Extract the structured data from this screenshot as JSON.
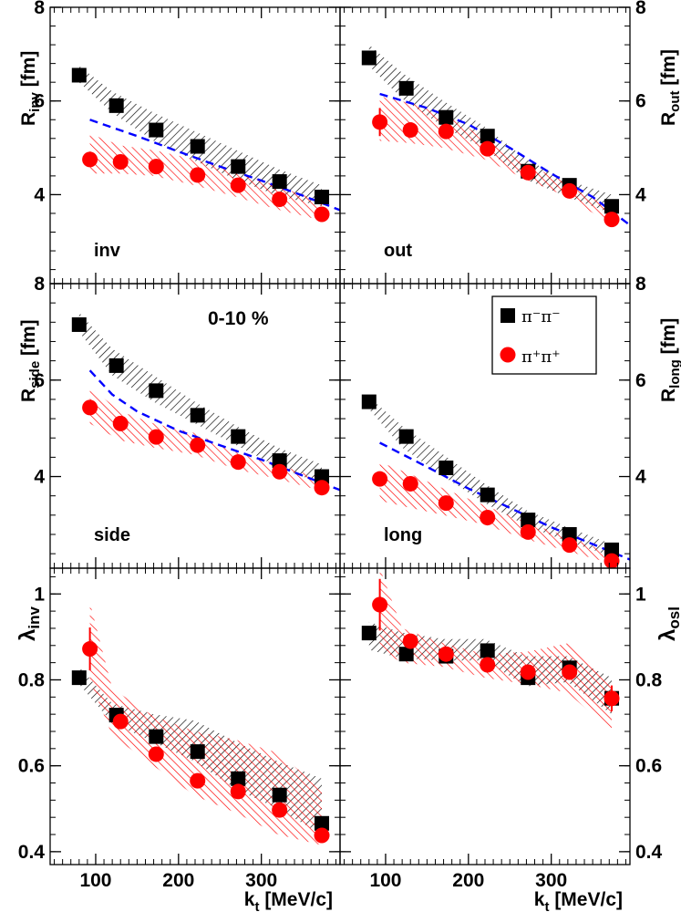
{
  "chart_data": {
    "type": "scatter",
    "xlabel": "k_t [MeV/c]",
    "xlim": [
      45,
      395
    ],
    "x_ticks": [
      100,
      200,
      300
    ],
    "centrality_label": "0-10 %",
    "legend": [
      {
        "series": "pi_minus",
        "label": "π⁻π⁻",
        "marker": "square",
        "color": "#000000"
      },
      {
        "series": "pi_plus",
        "label": "π⁺π⁺",
        "marker": "circle",
        "color": "#ff0000"
      }
    ],
    "colors": {
      "pi_minus": "#000000",
      "pi_plus": "#ff0000",
      "model": "#0000ff"
    },
    "panels": [
      {
        "id": "inv",
        "label": "inv",
        "ylabel": "R_inv [fm]",
        "ylim": [
          2.1,
          8
        ],
        "yticks": [
          4,
          6,
          8
        ],
        "series": [
          {
            "name": "π⁻π⁻",
            "x": [
              80,
              125,
              173,
              223,
              272,
              322,
              373
            ],
            "y": [
              6.55,
              5.9,
              5.38,
              5.03,
              4.6,
              4.28,
              3.95
            ],
            "err": [
              0.08,
              0.06,
              0.05,
              0.05,
              0.05,
              0.05,
              0.06
            ]
          },
          {
            "name": "π⁺π⁺",
            "x": [
              93,
              130,
              173,
              223,
              272,
              322,
              373
            ],
            "y": [
              4.75,
              4.7,
              4.6,
              4.42,
              4.2,
              3.9,
              3.58
            ],
            "err": [
              0.1,
              0.06,
              0.05,
              0.05,
              0.05,
              0.05,
              0.06
            ]
          }
        ],
        "bands": [
          {
            "series": "pi_minus",
            "x": [
              80,
              120,
              170,
              220,
              270,
              320,
              373
            ],
            "low": [
              6.4,
              5.75,
              5.15,
              4.72,
              4.32,
              3.98,
              3.75
            ],
            "high": [
              6.75,
              6.2,
              5.75,
              5.35,
              4.95,
              4.55,
              4.2
            ]
          },
          {
            "series": "pi_plus",
            "x": [
              93,
              130,
              170,
              220,
              270,
              320,
              373
            ],
            "low": [
              4.45,
              4.45,
              4.4,
              4.2,
              3.95,
              3.68,
              3.45
            ],
            "high": [
              5.3,
              5.05,
              4.95,
              4.75,
              4.48,
              4.18,
              3.85
            ]
          }
        ],
        "model": {
          "x": [
            93,
            150,
            200,
            250,
            300,
            350,
            395
          ],
          "y": [
            5.6,
            5.25,
            4.92,
            4.6,
            4.3,
            3.98,
            3.67
          ]
        }
      },
      {
        "id": "out",
        "label": "out",
        "ylabel": "R_out [fm]",
        "ylim": [
          2.1,
          8
        ],
        "yticks": [
          4,
          6,
          8
        ],
        "series": [
          {
            "name": "π⁻π⁻",
            "x": [
              80,
              125,
              173,
              223,
              272,
              322,
              373
            ],
            "y": [
              6.92,
              6.27,
              5.65,
              5.25,
              4.5,
              4.2,
              3.75
            ],
            "err": [
              0.1,
              0.07,
              0.06,
              0.05,
              0.05,
              0.05,
              0.06
            ]
          },
          {
            "name": "π⁺π⁺",
            "x": [
              93,
              130,
              173,
              223,
              272,
              322,
              373
            ],
            "y": [
              5.55,
              5.38,
              5.35,
              4.98,
              4.47,
              4.08,
              3.47
            ],
            "err": [
              0.3,
              0.08,
              0.06,
              0.06,
              0.06,
              0.06,
              0.07
            ]
          }
        ],
        "bands": [
          {
            "series": "pi_minus",
            "x": [
              80,
              120,
              170,
              220,
              270,
              320,
              373
            ],
            "low": [
              6.75,
              6.05,
              5.45,
              4.98,
              4.32,
              3.95,
              3.6
            ],
            "high": [
              7.2,
              6.6,
              6.0,
              5.45,
              4.75,
              4.3,
              4.0
            ]
          },
          {
            "series": "pi_plus",
            "x": [
              93,
              130,
              170,
              220,
              270,
              320,
              373
            ],
            "low": [
              5.15,
              5.1,
              5.0,
              4.75,
              4.32,
              3.95,
              3.35
            ],
            "high": [
              6.1,
              5.95,
              5.75,
              5.2,
              4.65,
              4.25,
              3.75
            ]
          }
        ],
        "model": {
          "x": [
            93,
            150,
            200,
            250,
            300,
            350,
            395
          ],
          "y": [
            6.15,
            5.85,
            5.5,
            5.0,
            4.45,
            3.95,
            3.35
          ]
        }
      },
      {
        "id": "side",
        "label": "side",
        "ylabel": "R_side [fm]",
        "ylim": [
          2.1,
          8
        ],
        "yticks": [
          4,
          6,
          8
        ],
        "series": [
          {
            "name": "π⁻π⁻",
            "x": [
              80,
              125,
              173,
              223,
              272,
              322,
              373
            ],
            "y": [
              7.15,
              6.3,
              5.78,
              5.27,
              4.83,
              4.33,
              4.0
            ],
            "err": [
              0.08,
              0.06,
              0.05,
              0.05,
              0.05,
              0.05,
              0.05
            ]
          },
          {
            "name": "π⁺π⁺",
            "x": [
              93,
              130,
              173,
              223,
              272,
              322,
              373
            ],
            "y": [
              5.43,
              5.1,
              4.82,
              4.65,
              4.3,
              4.1,
              3.77
            ],
            "err": [
              0.1,
              0.06,
              0.05,
              0.05,
              0.05,
              0.05,
              0.05
            ]
          }
        ],
        "bands": [
          {
            "series": "pi_minus",
            "x": [
              80,
              120,
              170,
              220,
              270,
              320,
              373
            ],
            "low": [
              7.0,
              6.1,
              5.55,
              5.1,
              4.65,
              4.2,
              3.85
            ],
            "high": [
              7.4,
              6.65,
              6.1,
              5.55,
              5.05,
              4.6,
              4.25
            ]
          },
          {
            "series": "pi_plus",
            "x": [
              93,
              130,
              170,
              220,
              270,
              320,
              373
            ],
            "low": [
              5.1,
              4.75,
              4.6,
              4.45,
              4.15,
              3.95,
              3.7
            ],
            "high": [
              5.85,
              5.35,
              5.1,
              4.9,
              4.5,
              4.25,
              3.95
            ]
          }
        ],
        "model": {
          "x": [
            93,
            120,
            150,
            200,
            250,
            300,
            350,
            395
          ],
          "y": [
            6.2,
            5.7,
            5.35,
            4.95,
            4.65,
            4.35,
            4.02,
            3.72
          ]
        }
      },
      {
        "id": "long",
        "label": "long",
        "ylabel": "R_long [fm]",
        "ylim": [
          2.1,
          8
        ],
        "yticks": [
          4,
          6,
          8
        ],
        "series": [
          {
            "name": "π⁻π⁻",
            "x": [
              80,
              125,
              173,
              223,
              272,
              322,
              373
            ],
            "y": [
              5.55,
              4.83,
              4.18,
              3.62,
              3.1,
              2.8,
              2.48
            ],
            "err": [
              0.07,
              0.06,
              0.05,
              0.05,
              0.05,
              0.05,
              0.05
            ]
          },
          {
            "name": "π⁺π⁺",
            "x": [
              93,
              130,
              173,
              223,
              272,
              322,
              373
            ],
            "y": [
              3.95,
              3.85,
              3.45,
              3.15,
              2.85,
              2.58,
              2.25
            ],
            "err": [
              0.1,
              0.06,
              0.05,
              0.05,
              0.05,
              0.05,
              0.05
            ]
          }
        ],
        "bands": [
          {
            "series": "pi_minus",
            "x": [
              80,
              120,
              170,
              220,
              270,
              320,
              373
            ],
            "low": [
              5.4,
              4.6,
              4.0,
              3.45,
              2.98,
              2.65,
              2.35
            ],
            "high": [
              5.65,
              5.05,
              4.45,
              3.85,
              3.3,
              2.95,
              2.6
            ]
          },
          {
            "series": "pi_plus",
            "x": [
              93,
              130,
              170,
              220,
              270,
              320,
              373
            ],
            "low": [
              3.5,
              3.35,
              3.2,
              3.0,
              2.7,
              2.45,
              2.2
            ],
            "high": [
              4.3,
              4.05,
              3.75,
              3.4,
              3.05,
              2.75,
              2.4
            ]
          }
        ],
        "model": {
          "x": [
            93,
            150,
            200,
            250,
            300,
            350,
            395
          ],
          "y": [
            4.7,
            4.2,
            3.75,
            3.35,
            2.95,
            2.6,
            2.28
          ]
        }
      },
      {
        "id": "lambda_inv",
        "label": "",
        "ylabel": "λ_inv",
        "ylim": [
          0.37,
          1.06
        ],
        "yticks": [
          0.4,
          0.6,
          0.8,
          1
        ],
        "series": [
          {
            "name": "π⁻π⁻",
            "x": [
              80,
              125,
              173,
              223,
              272,
              322,
              373
            ],
            "y": [
              0.805,
              0.718,
              0.668,
              0.633,
              0.57,
              0.532,
              0.466
            ],
            "err": [
              0.01,
              0.01,
              0.01,
              0.01,
              0.01,
              0.01,
              0.01
            ]
          },
          {
            "name": "π⁺π⁺",
            "x": [
              93,
              130,
              173,
              223,
              272,
              322,
              373
            ],
            "y": [
              0.872,
              0.703,
              0.627,
              0.565,
              0.54,
              0.497,
              0.438
            ],
            "err": [
              0.05,
              0.01,
              0.01,
              0.01,
              0.01,
              0.01,
              0.015
            ]
          }
        ],
        "bands": [
          {
            "series": "pi_minus",
            "x": [
              80,
              120,
              170,
              220,
              270,
              320,
              373
            ],
            "low": [
              0.79,
              0.7,
              0.655,
              0.61,
              0.545,
              0.5,
              0.44
            ],
            "high": [
              0.83,
              0.745,
              0.72,
              0.705,
              0.655,
              0.61,
              0.57
            ]
          },
          {
            "series": "pi_plus",
            "x": [
              93,
              120,
              170,
              220,
              270,
              320,
              373
            ],
            "low": [
              0.8,
              0.67,
              0.6,
              0.53,
              0.49,
              0.44,
              0.415
            ],
            "high": [
              0.98,
              0.78,
              0.715,
              0.68,
              0.66,
              0.63,
              0.545
            ]
          }
        ]
      },
      {
        "id": "lambda_osl",
        "label": "",
        "ylabel": "λ_osl",
        "ylim": [
          0.37,
          1.06
        ],
        "yticks": [
          0.4,
          0.6,
          0.8,
          1
        ],
        "series": [
          {
            "name": "π⁻π⁻",
            "x": [
              80,
              125,
              173,
              223,
              272,
              322,
              373
            ],
            "y": [
              0.909,
              0.86,
              0.855,
              0.868,
              0.805,
              0.828,
              0.757
            ],
            "err": [
              0.01,
              0.01,
              0.01,
              0.01,
              0.01,
              0.01,
              0.015
            ]
          },
          {
            "name": "π⁺π⁺",
            "x": [
              93,
              130,
              173,
              223,
              272,
              322,
              373
            ],
            "y": [
              0.975,
              0.89,
              0.86,
              0.835,
              0.818,
              0.818,
              0.757
            ],
            "err": [
              0.06,
              0.01,
              0.01,
              0.01,
              0.01,
              0.01,
              0.03
            ]
          }
        ],
        "bands": [
          {
            "series": "pi_minus",
            "x": [
              80,
              120,
              170,
              220,
              270,
              320,
              373
            ],
            "low": [
              0.87,
              0.85,
              0.845,
              0.845,
              0.785,
              0.795,
              0.72
            ],
            "high": [
              0.935,
              0.91,
              0.895,
              0.895,
              0.855,
              0.855,
              0.805
            ]
          },
          {
            "series": "pi_plus",
            "x": [
              93,
              120,
              170,
              220,
              270,
              320,
              373
            ],
            "low": [
              0.87,
              0.84,
              0.83,
              0.805,
              0.79,
              0.77,
              0.68
            ],
            "high": [
              1.06,
              0.92,
              0.885,
              0.86,
              0.865,
              0.885,
              0.79
            ]
          }
        ]
      }
    ]
  }
}
